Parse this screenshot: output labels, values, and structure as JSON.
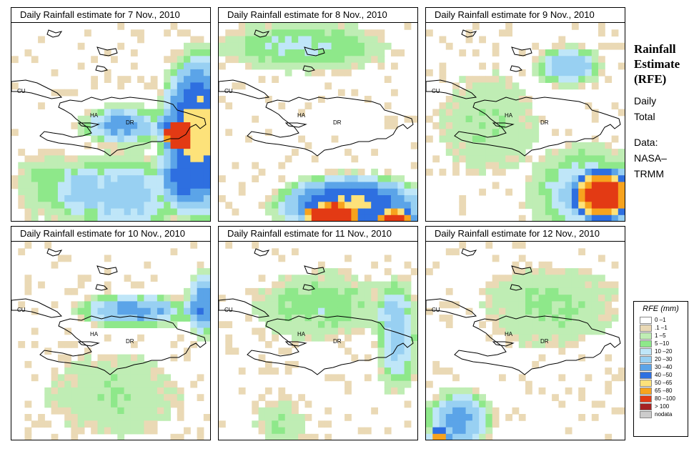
{
  "panels": [
    {
      "title": "Daily Rainfall estimate for  7 Nov., 2010"
    },
    {
      "title": "Daily Rainfall estimate for  8 Nov., 2010"
    },
    {
      "title": "Daily Rainfall estimate for  9 Nov., 2010"
    },
    {
      "title": "Daily Rainfall estimate for  10 Nov., 2010"
    },
    {
      "title": "Daily Rainfall estimate for  11 Nov., 2010"
    },
    {
      "title": "Daily Rainfall estimate for  12 Nov., 2010"
    }
  ],
  "map_labels": {
    "cu": "CU",
    "ha": "HA",
    "dr": "DR"
  },
  "sidebar": {
    "title_line1": "Rainfall",
    "title_line2": "Estimate",
    "title_line3": "(RFE)",
    "period_line1": "Daily",
    "period_line2": "Total",
    "source_line1": "Data:",
    "source_line2": "NASA–",
    "source_line3": "TRMM"
  },
  "legend": {
    "title": "RFE (mm)",
    "items": [
      {
        "label": "0 –1",
        "color": "#ffffff"
      },
      {
        "label": ".1 –1",
        "color": "#ead9b5"
      },
      {
        "label": "1 –5",
        "color": "#bfedb4"
      },
      {
        "label": "5 –10",
        "color": "#8ee88a"
      },
      {
        "label": "10 –20",
        "color": "#bfe6f8"
      },
      {
        "label": "20 –30",
        "color": "#98d0f2"
      },
      {
        "label": "30 –40",
        "color": "#5ba4e8"
      },
      {
        "label": "40 –50",
        "color": "#2e6fe0"
      },
      {
        "label": "50 –65",
        "color": "#fde27a"
      },
      {
        "label": "65 –80",
        "color": "#f7a31e"
      },
      {
        "label": "80 –100",
        "color": "#e33a14"
      },
      {
        "label": "> 100",
        "color": "#a52222"
      },
      {
        "label": "nodata",
        "color": "#cccccc"
      }
    ]
  }
}
